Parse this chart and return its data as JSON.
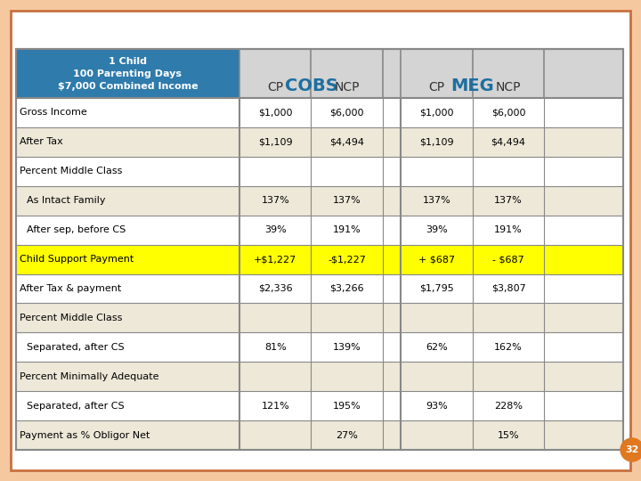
{
  "title_text": "1 Child\n100 Parenting Days\n$7,000 Combined Income",
  "cobs_label": "COBS",
  "meg_label": "MEG",
  "rows": [
    {
      "label": "Gross Income",
      "indent": false,
      "vals": [
        "$1,000",
        "$6,000",
        "",
        "$1,000",
        "$6,000"
      ],
      "highlight": "none"
    },
    {
      "label": "After Tax",
      "indent": false,
      "vals": [
        "$1,109",
        "$4,494",
        "",
        "$1,109",
        "$4,494"
      ],
      "highlight": "none"
    },
    {
      "label": "Percent Middle Class",
      "indent": false,
      "vals": [
        "",
        "",
        "",
        "",
        ""
      ],
      "highlight": "none"
    },
    {
      "label": "As Intact Family",
      "indent": true,
      "vals": [
        "137%",
        "137%",
        "",
        "137%",
        "137%"
      ],
      "highlight": "none"
    },
    {
      "label": "After sep, before CS",
      "indent": true,
      "vals": [
        "39%",
        "191%",
        "",
        "39%",
        "191%"
      ],
      "highlight": "none"
    },
    {
      "label": "Child Support Payment",
      "indent": false,
      "vals": [
        "+$1,227",
        "-$1,227",
        "",
        "+ $687",
        "- $687"
      ],
      "highlight": "yellow"
    },
    {
      "label": "After Tax & payment",
      "indent": false,
      "vals": [
        "$2,336",
        "$3,266",
        "",
        "$1,795",
        "$3,807"
      ],
      "highlight": "none"
    },
    {
      "label": "Percent Middle Class",
      "indent": false,
      "vals": [
        "",
        "",
        "",
        "",
        ""
      ],
      "highlight": "none"
    },
    {
      "label": "Separated, after CS",
      "indent": true,
      "vals": [
        "81%",
        "139%",
        "",
        "62%",
        "162%"
      ],
      "highlight": "none"
    },
    {
      "label": "Percent Minimally Adequate",
      "indent": false,
      "vals": [
        "",
        "",
        "",
        "",
        ""
      ],
      "highlight": "none"
    },
    {
      "label": "Separated, after CS",
      "indent": true,
      "vals": [
        "121%",
        "195%",
        "",
        "93%",
        "228%"
      ],
      "highlight": "none"
    },
    {
      "label": "Payment as % Obligor Net",
      "indent": false,
      "vals": [
        "",
        "27%",
        "",
        "",
        "15%"
      ],
      "highlight": "none"
    }
  ],
  "outer_bg": "#f5c8a0",
  "slide_bg": "#ffffff",
  "header_left_bg": "#2e7bac",
  "header_right_bg": "#d4d4d4",
  "cobs_color": "#1e6fa0",
  "meg_color": "#1e6fa0",
  "yellow_bg": "#ffff00",
  "row_bg_light": "#ede8d8",
  "row_bg_white": "#ffffff",
  "grid_color": "#888888",
  "page_num": "32",
  "page_num_bg": "#e07820",
  "border_color": "#c87040"
}
